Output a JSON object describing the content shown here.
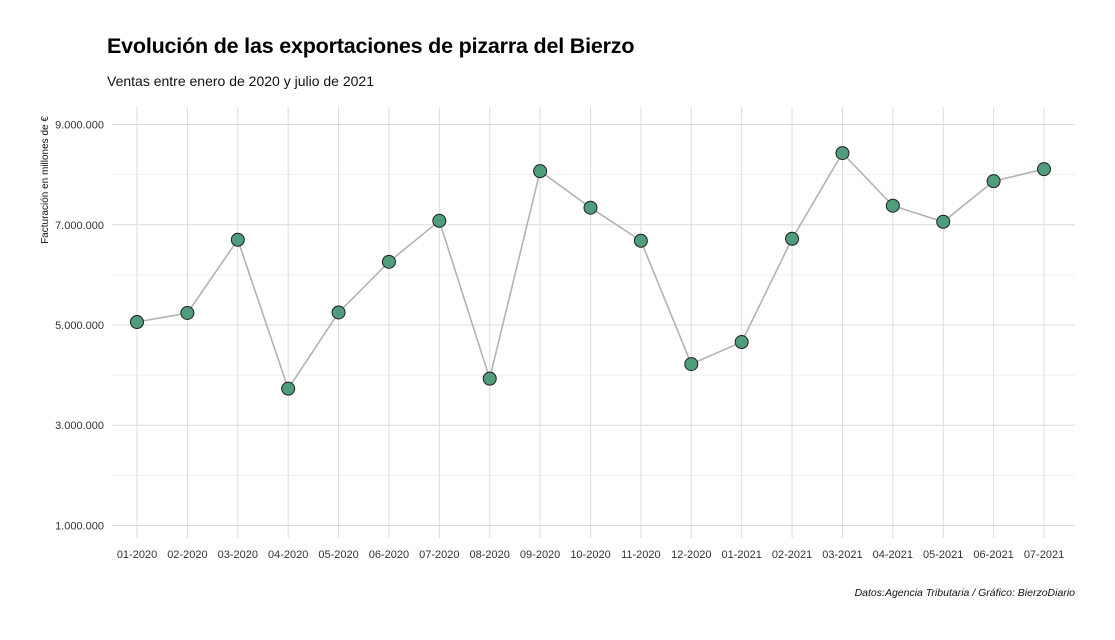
{
  "chart_data": {
    "type": "line",
    "title": "Evolución de las exportaciones de pizarra del Bierzo",
    "subtitle": "Ventas entre enero de 2020 y julio de 2021",
    "ylabel": "Facturación en millones de €",
    "xlabel": "",
    "caption": "Datos:Agencia Tributaria / Gráfico: BierzoDiario",
    "categories": [
      "01-2020",
      "02-2020",
      "03-2020",
      "04-2020",
      "05-2020",
      "06-2020",
      "07-2020",
      "08-2020",
      "09-2020",
      "10-2020",
      "11-2020",
      "12-2020",
      "01-2021",
      "02-2021",
      "03-2021",
      "04-2021",
      "05-2021",
      "06-2021",
      "07-2021"
    ],
    "values": [
      5060000,
      5240000,
      6700000,
      3730000,
      5250000,
      6260000,
      7080000,
      3930000,
      8070000,
      7340000,
      6680000,
      4220000,
      4660000,
      6720000,
      8430000,
      7380000,
      7060000,
      7870000,
      8110000
    ],
    "y_ticks": [
      1000000,
      3000000,
      5000000,
      7000000,
      9000000
    ],
    "y_tick_labels": [
      "1.000.000",
      "3.000.000",
      "5.000.000",
      "7.000.000",
      "9.000.000"
    ],
    "ylim": [
      750000,
      9350000
    ],
    "grid": true,
    "colors": {
      "point_fill": "#4f9d7c",
      "point_stroke": "#1e1e1e",
      "line": "#b3b3b3",
      "grid": "#dcdcdc"
    }
  }
}
